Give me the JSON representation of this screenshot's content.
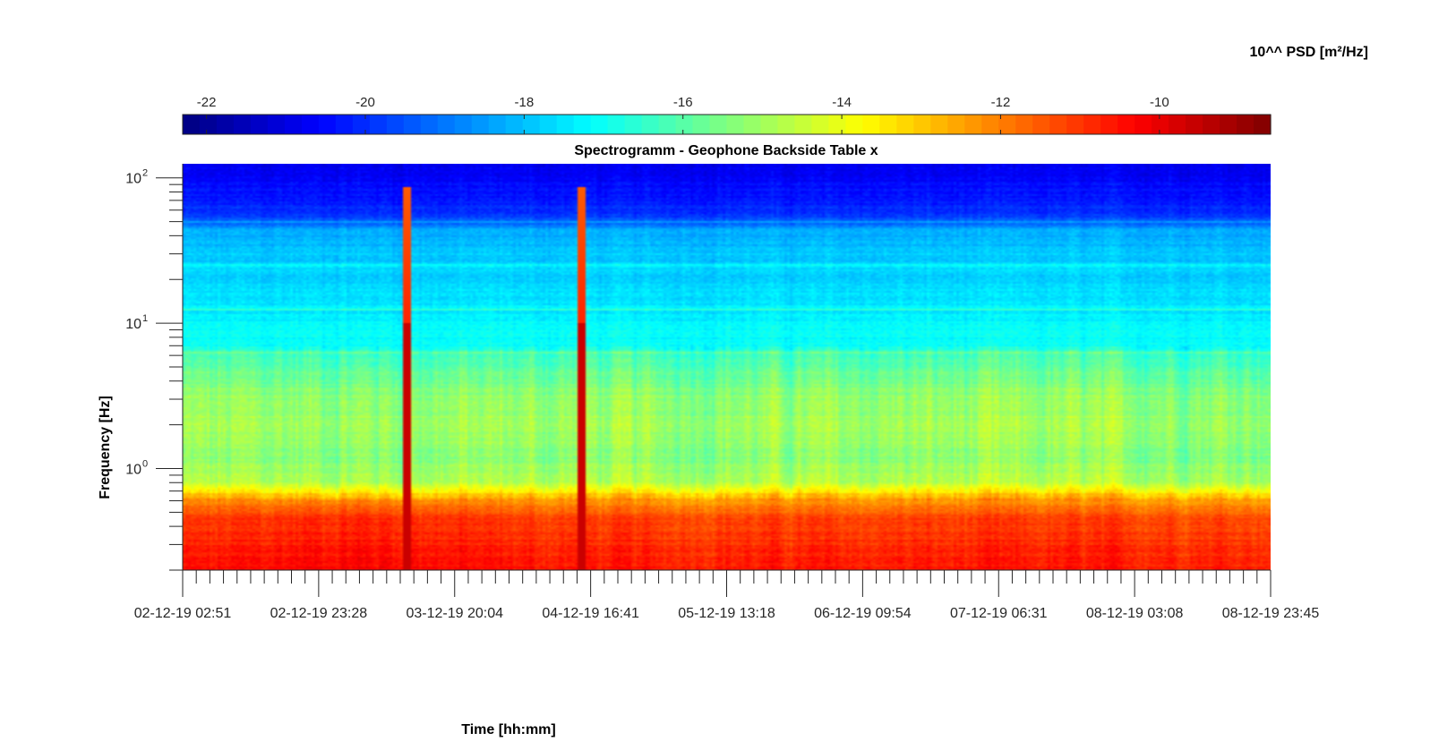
{
  "chart_data": {
    "type": "heatmap",
    "title": "Spectrogramm - Geophone Backside Table x",
    "xlabel": "Time [hh:mm]",
    "ylabel": "Frequency [Hz]",
    "colorbar": {
      "label": "10^^ PSD [m²/Hz]",
      "range": [
        -22.3,
        -8.6
      ],
      "ticks": [
        "-22",
        "-20",
        "-18",
        "-16",
        "-14",
        "-12",
        "-10"
      ],
      "colormap": "jet",
      "position": "top"
    },
    "x_ticks": [
      "02-12-19 02:51",
      "02-12-19 23:28",
      "03-12-19 20:04",
      "04-12-19 16:41",
      "05-12-19 13:18",
      "06-12-19 09:54",
      "07-12-19 06:31",
      "08-12-19 03:08",
      "08-12-19 23:45"
    ],
    "y_scale": "log",
    "y_ticks": [
      "10",
      "10",
      "10"
    ],
    "y_tick_exponents": [
      "0",
      "1",
      "2"
    ],
    "ylim": [
      0.2,
      125
    ],
    "psd_profile_log10": {
      "frequency_hz": [
        0.2,
        0.3,
        0.45,
        0.62,
        0.8,
        1.2,
        2.0,
        3.0,
        4.5,
        6.0,
        7.0,
        10.0,
        15.0,
        20.0,
        30.0,
        45.0,
        50.0,
        70.0,
        100.0,
        125.0
      ],
      "psd": [
        -10.6,
        -10.9,
        -11.2,
        -12.5,
        -14.8,
        -15.3,
        -15.0,
        -15.2,
        -15.8,
        -16.4,
        -17.0,
        -17.3,
        -17.5,
        -17.7,
        -17.9,
        -18.4,
        -19.6,
        -20.3,
        -20.6,
        -20.9
      ]
    },
    "narrowband_lines_hz": [
      6.25,
      12.5,
      25.0,
      50.0
    ],
    "transient_events": [
      "03-12-19 12:55",
      "04-12-19 15:20"
    ],
    "grid": false
  }
}
